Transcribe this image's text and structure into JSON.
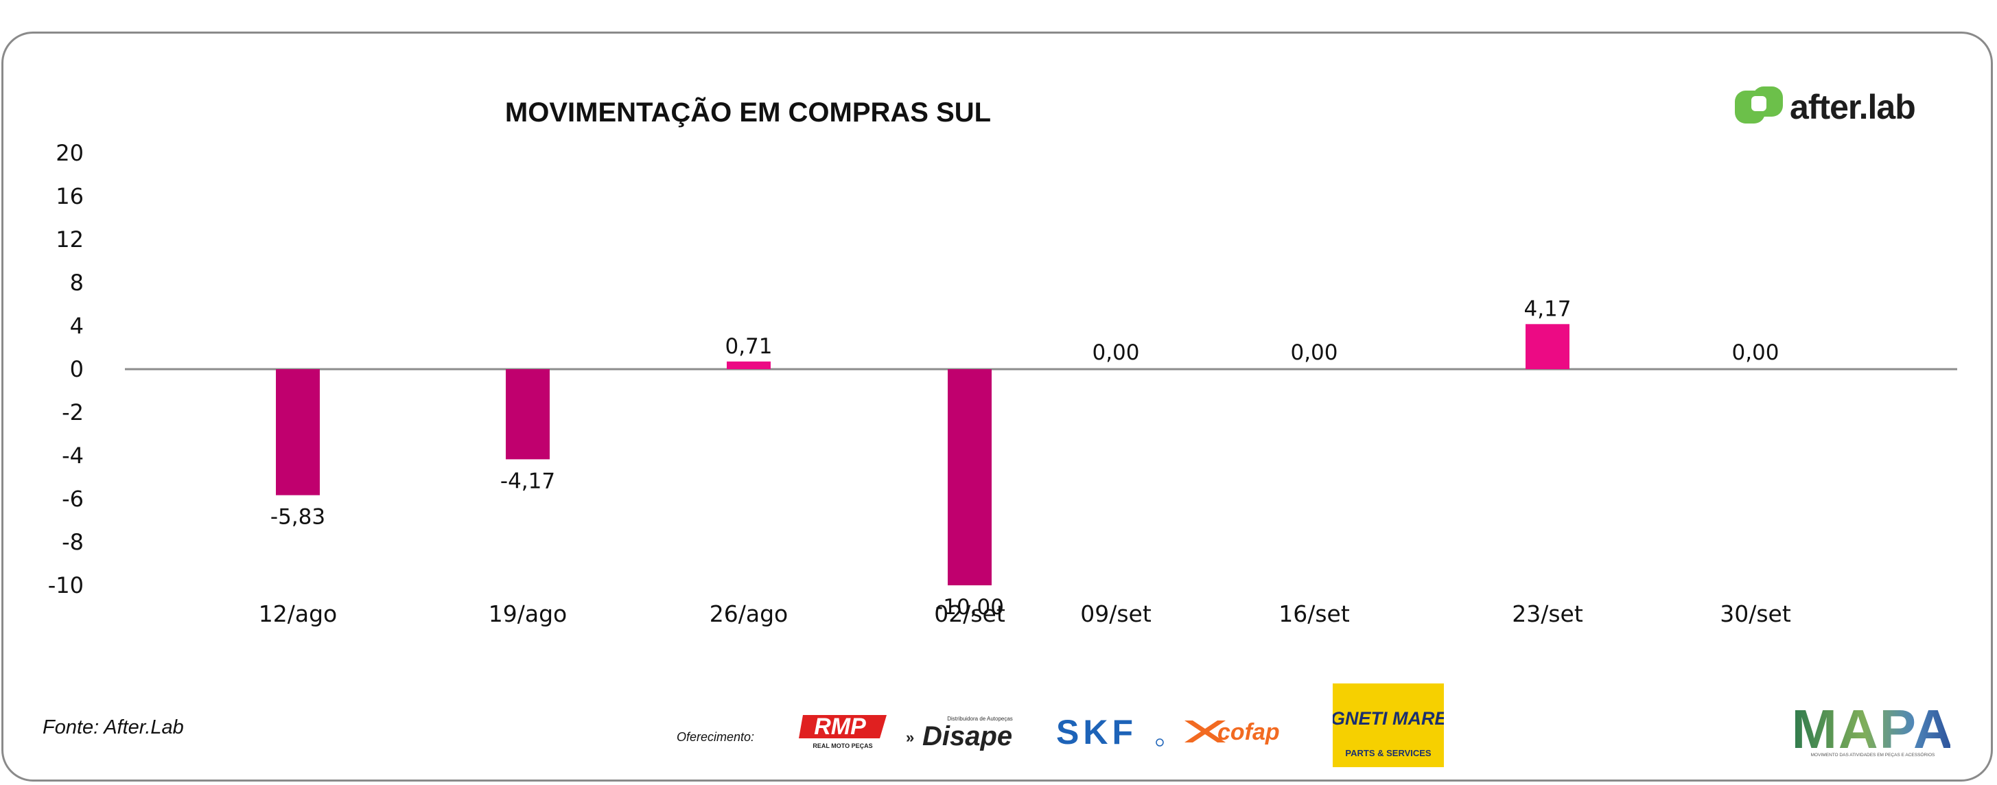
{
  "chart_data": {
    "type": "bar",
    "title": "MOVIMENTAÇÃO EM COMPRAS SUL",
    "categories": [
      "12/ago",
      "19/ago",
      "26/ago",
      "02/set",
      "09/set",
      "16/set",
      "23/set",
      "30/set"
    ],
    "values": [
      -5.83,
      -4.17,
      0.71,
      -10.0,
      0.0,
      0.0,
      4.17,
      0.0
    ],
    "value_labels": [
      "-5,83",
      "-4,17",
      "0,71",
      "-10,00",
      "0,00",
      "0,00",
      "4,17",
      "0,00"
    ],
    "ylim": [
      -10,
      20
    ],
    "yticks": [
      20,
      16,
      12,
      8,
      4,
      0,
      -2,
      -4,
      -6,
      -8,
      -10
    ],
    "xlabel": "",
    "ylabel": "",
    "grid": false,
    "colors": {
      "negative": "#c0006e",
      "positive": "#ec0a84",
      "axis": "#8c8c8c"
    }
  },
  "brand": {
    "name": "after.lab",
    "colors": {
      "mark": "#6cc04a"
    }
  },
  "footer": {
    "source": "Fonte: After.Lab",
    "offer_label": "Oferecimento:",
    "sponsors": [
      {
        "name": "RMP",
        "tagline": "REAL MOTO PEÇAS",
        "color": "#e02020",
        "icon": "rmp-logo"
      },
      {
        "name": "Disape",
        "tagline": "Distribuidora de Autopeças",
        "color": "#222222",
        "icon": "disape-logo"
      },
      {
        "name": "SKF",
        "color": "#1d63b8",
        "icon": "skf-logo"
      },
      {
        "name": "cofap",
        "color": "#f26a21",
        "icon": "cofap-logo"
      },
      {
        "name": "MAGNETI MARELLI",
        "tagline": "PARTS & SERVICES",
        "color": "#f6d000",
        "icon": "magneti-marelli-logo"
      }
    ],
    "mapa": {
      "name": "MAPA",
      "tagline": "MOVIMENTO DAS ATIVIDADES EM PEÇAS E ACESSÓRIOS",
      "icon": "mapa-logo"
    }
  }
}
